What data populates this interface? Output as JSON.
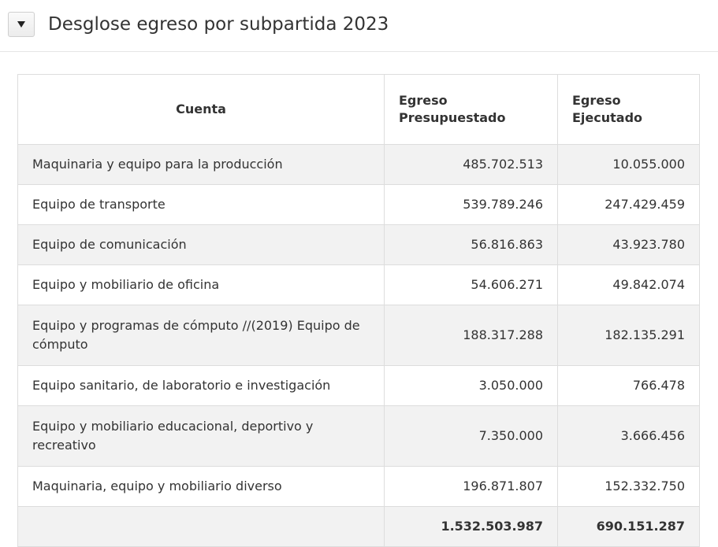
{
  "section": {
    "title": "Desglose egreso por subpartida 2023",
    "toggle_icon": "triangle-down-icon"
  },
  "table": {
    "headers": {
      "cuenta": "Cuenta",
      "presupuestado": "Egreso Presupuestado",
      "ejecutado": "Egreso Ejecutado"
    },
    "rows": [
      {
        "cuenta": "Maquinaria y equipo para la producción",
        "presupuestado": "485.702.513",
        "ejecutado": "10.055.000"
      },
      {
        "cuenta": "Equipo de transporte",
        "presupuestado": "539.789.246",
        "ejecutado": "247.429.459"
      },
      {
        "cuenta": "Equipo de comunicación",
        "presupuestado": "56.816.863",
        "ejecutado": "43.923.780"
      },
      {
        "cuenta": "Equipo y mobiliario de oficina",
        "presupuestado": "54.606.271",
        "ejecutado": "49.842.074"
      },
      {
        "cuenta": "Equipo y programas de cómputo //(2019) Equipo de cómputo",
        "presupuestado": "188.317.288",
        "ejecutado": "182.135.291"
      },
      {
        "cuenta": "Equipo sanitario, de laboratorio e investigación",
        "presupuestado": "3.050.000",
        "ejecutado": "766.478"
      },
      {
        "cuenta": "Equipo y mobiliario educacional, deportivo y recreativo",
        "presupuestado": "7.350.000",
        "ejecutado": "3.666.456"
      },
      {
        "cuenta": "Maquinaria, equipo y mobiliario diverso",
        "presupuestado": "196.871.807",
        "ejecutado": "152.332.750"
      }
    ],
    "totals": {
      "cuenta": "",
      "presupuestado": "1.532.503.987",
      "ejecutado": "690.151.287"
    }
  }
}
